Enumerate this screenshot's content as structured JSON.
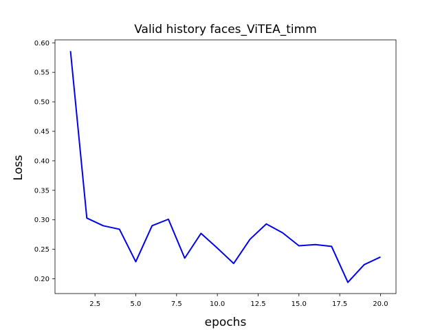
{
  "chart_data": {
    "type": "line",
    "title": "Valid history faces_ViTEA_timm",
    "xlabel": "epochs",
    "ylabel": "Loss",
    "xlim": [
      0.05,
      20.95
    ],
    "ylim": [
      0.175,
      0.605
    ],
    "xticks": [
      2.5,
      5.0,
      7.5,
      10.0,
      12.5,
      15.0,
      17.5,
      20.0
    ],
    "xtick_labels": [
      "2.5",
      "5.0",
      "7.5",
      "10.0",
      "12.5",
      "15.0",
      "17.5",
      "20.0"
    ],
    "yticks": [
      0.2,
      0.25,
      0.3,
      0.35,
      0.4,
      0.45,
      0.5,
      0.55,
      0.6
    ],
    "ytick_labels": [
      "0.20",
      "0.25",
      "0.30",
      "0.35",
      "0.40",
      "0.45",
      "0.50",
      "0.55",
      "0.60"
    ],
    "grid": false,
    "series": [
      {
        "color": "#0000ee",
        "x": [
          1,
          2,
          3,
          4,
          5,
          6,
          7,
          8,
          9,
          10,
          11,
          12,
          13,
          14,
          15,
          16,
          17,
          18,
          19,
          20
        ],
        "y": [
          0.586,
          0.303,
          0.29,
          0.284,
          0.229,
          0.29,
          0.301,
          0.235,
          0.277,
          0.252,
          0.226,
          0.267,
          0.293,
          0.278,
          0.256,
          0.258,
          0.255,
          0.194,
          0.224,
          0.237
        ]
      }
    ]
  }
}
